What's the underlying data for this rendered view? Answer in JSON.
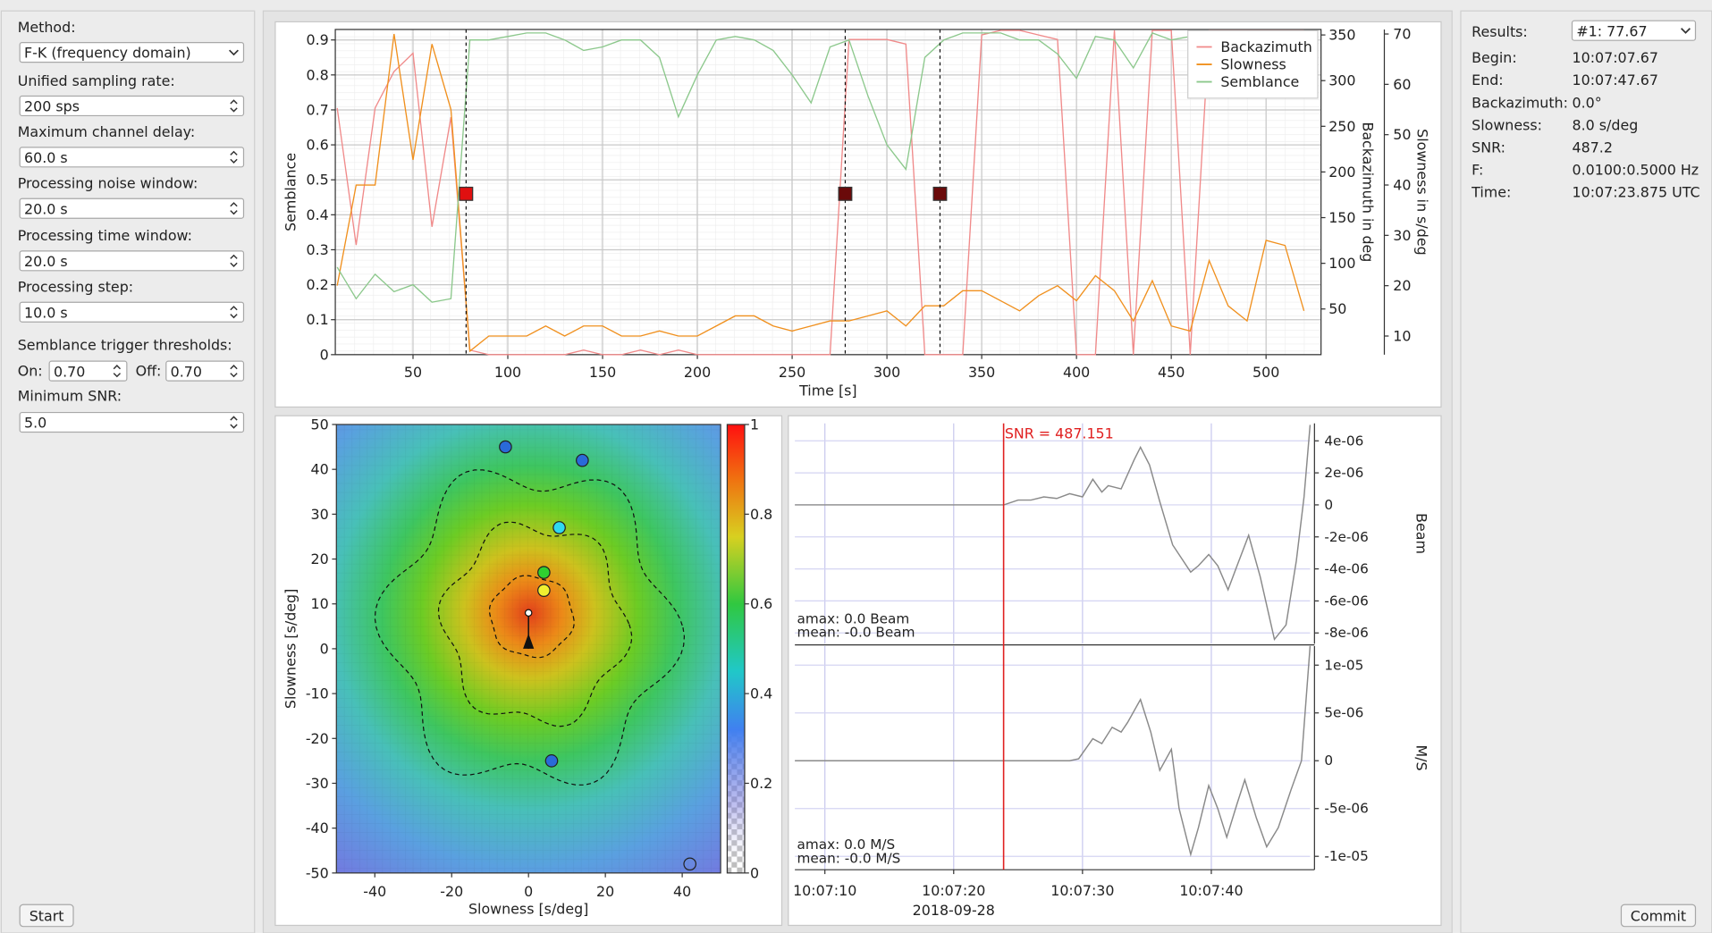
{
  "settings": {
    "method_label": "Method:",
    "method": "F-K (frequency domain)",
    "fields": [
      {
        "label": "Unified sampling rate:",
        "value": "200 sps"
      },
      {
        "label": "Maximum channel delay:",
        "value": "60.0 s"
      },
      {
        "label": "Processing noise window:",
        "value": "20.0 s"
      },
      {
        "label": "Processing time window:",
        "value": "20.0 s"
      },
      {
        "label": "Processing step:",
        "value": "10.0 s"
      }
    ],
    "thresholds_label": "Semblance trigger thresholds:",
    "on_label": "On:",
    "on": "0.70",
    "off_label": "Off:",
    "off": "0.70",
    "snr_label": "Minimum SNR:",
    "snr": "5.0",
    "start": "Start"
  },
  "results": {
    "label": "Results:",
    "selected": "#1: 77.67",
    "rows": [
      {
        "label": "Begin:",
        "value": "10:07:07.67"
      },
      {
        "label": "End:",
        "value": "10:07:47.67"
      },
      {
        "label": "Backazimuth:",
        "value": "0.0°"
      },
      {
        "label": "Slowness:",
        "value": "8.0 s/deg"
      },
      {
        "label": "SNR:",
        "value": "487.2"
      },
      {
        "label": "F:",
        "value": "0.0100:0.5000 Hz"
      },
      {
        "label": "Time:",
        "value": "10:07:23.875 UTC"
      }
    ],
    "commit": "Commit"
  },
  "chart_data": [
    {
      "type": "line",
      "xlabel": "Time [s]",
      "ylabel": "Semblance",
      "y2label": "Backazimuth in deg",
      "y3label": "Slowness in s/deg",
      "xlim": [
        9,
        529
      ],
      "ylim": [
        0,
        0.93
      ],
      "y2lim": [
        0,
        356
      ],
      "y3lim": [
        6.3,
        70.9
      ],
      "xticks": [
        50,
        100,
        150,
        200,
        250,
        300,
        350,
        400,
        450,
        500
      ],
      "yticks": [
        0,
        0.1,
        0.2,
        0.3,
        0.4,
        0.5,
        0.6,
        0.7,
        0.8,
        0.9
      ],
      "y2ticks": [
        50,
        100,
        150,
        200,
        250,
        300,
        350
      ],
      "y3ticks": [
        10,
        20,
        30,
        40,
        50,
        60,
        70
      ],
      "grid": true,
      "legend": "upper right",
      "x": [
        10,
        20,
        30,
        40,
        50,
        60,
        70,
        80,
        90,
        100,
        110,
        120,
        130,
        140,
        150,
        160,
        170,
        180,
        190,
        200,
        210,
        220,
        230,
        240,
        250,
        260,
        270,
        280,
        290,
        300,
        310,
        320,
        330,
        340,
        350,
        360,
        370,
        380,
        390,
        400,
        410,
        420,
        430,
        440,
        450,
        460,
        470,
        480,
        490,
        500,
        510,
        520
      ],
      "series": [
        {
          "name": "Backazimuth",
          "color": "#f08a8a",
          "axis": "y2",
          "values": [
            270,
            120,
            270,
            310,
            330,
            140,
            260,
            5,
            0,
            0,
            0,
            0,
            0,
            5,
            0,
            0,
            5,
            0,
            5,
            0,
            0,
            0,
            0,
            0,
            0,
            0,
            0,
            345,
            345,
            345,
            340,
            0,
            0,
            0,
            350,
            355,
            355,
            350,
            345,
            0,
            0,
            355,
            0,
            355,
            355,
            0,
            355,
            355,
            355,
            355,
            355,
            355
          ]
        },
        {
          "name": "Slowness",
          "color": "#f0901e",
          "axis": "y3",
          "values": [
            20,
            40,
            40,
            70,
            45,
            68,
            55,
            7,
            10,
            10,
            10,
            12,
            10,
            12,
            12,
            10,
            10,
            11,
            10,
            10,
            12,
            14,
            14,
            12,
            11,
            12,
            13,
            13,
            14,
            15,
            12,
            16,
            16,
            19,
            19,
            17,
            15,
            18,
            20,
            17,
            22,
            19,
            13,
            21,
            12,
            11,
            25,
            16,
            13,
            29,
            28,
            15
          ]
        },
        {
          "name": "Semblance",
          "color": "#8cc88c",
          "axis": "y",
          "values": [
            0.25,
            0.16,
            0.23,
            0.18,
            0.2,
            0.15,
            0.16,
            0.9,
            0.9,
            0.91,
            0.92,
            0.92,
            0.9,
            0.87,
            0.88,
            0.9,
            0.9,
            0.85,
            0.68,
            0.8,
            0.9,
            0.91,
            0.9,
            0.87,
            0.8,
            0.72,
            0.88,
            0.9,
            0.74,
            0.6,
            0.53,
            0.85,
            0.9,
            0.92,
            0.92,
            0.92,
            0.9,
            0.9,
            0.86,
            0.79,
            0.91,
            0.9,
            0.82,
            0.92,
            0.9,
            0.91,
            0.9,
            0.91,
            0.9,
            0.91,
            0.9,
            0.9
          ]
        }
      ],
      "triggers": {
        "x": [
          78,
          278,
          328
        ],
        "values": [
          0.46,
          0.46,
          0.46
        ],
        "colors": [
          "#e01010",
          "#6a0a0a",
          "#6a0a0a"
        ]
      }
    },
    {
      "type": "heatmap",
      "xlabel": "Slowness [s/deg]",
      "ylabel": "Slowness [s/deg]",
      "xlim": [
        -50,
        50
      ],
      "ylim": [
        -50,
        50
      ],
      "xticks": [
        -40,
        -20,
        0,
        20,
        40
      ],
      "yticks": [
        -50,
        -40,
        -30,
        -20,
        -10,
        0,
        10,
        20,
        30,
        40,
        50
      ],
      "colorbar_lim": [
        0,
        1
      ],
      "colorbar_ticks": [
        0,
        0.2,
        0.4,
        0.6,
        0.8,
        1
      ],
      "stations": {
        "x": [
          -6,
          14,
          8,
          4,
          4,
          6,
          42
        ],
        "y": [
          45,
          42,
          27,
          17,
          13,
          -25,
          -48
        ],
        "colors": [
          "#2a6ad8",
          "#2a6ad8",
          "#30d8f0",
          "#30d030",
          "#f0f030",
          "#2a6ad8",
          "none"
        ]
      },
      "peak": {
        "x": 0,
        "y": 8
      }
    },
    {
      "type": "line",
      "xlim": [
        7.67,
        47.67
      ],
      "xticks": [
        {
          "value": 10,
          "label": "10:07:10"
        },
        {
          "value": 20,
          "label": "10:07:20"
        },
        {
          "value": 30,
          "label": "10:07:30"
        },
        {
          "value": 40,
          "label": "10:07:40"
        }
      ],
      "date_label": "2018-09-28",
      "snr": {
        "time": 23.875,
        "label": "SNR = 487.151"
      },
      "color": "#8a8a8a",
      "panels": [
        {
          "name": "Beam",
          "ylim": [
            -8.68e-06,
            5.09e-06
          ],
          "yticks": [
            {
              "value": 4e-06,
              "label": "4e-06"
            },
            {
              "value": 2e-06,
              "label": "2e-06"
            },
            0,
            {
              "value": -2e-06,
              "label": "-2e-06"
            },
            {
              "value": -4e-06,
              "label": "-4e-06"
            },
            {
              "value": -6e-06,
              "label": "-6e-06"
            },
            {
              "value": -8e-06,
              "label": "-8e-06"
            }
          ],
          "annotations": [
            "amax: 0.0 Beam",
            "mean: -0.0 Beam"
          ],
          "x": [
            7.67,
            10,
            15,
            20,
            23.9,
            25,
            26,
            27,
            28,
            29,
            30,
            30.8,
            31.5,
            32,
            33,
            34,
            34.5,
            35.2,
            36,
            37,
            38.4,
            39,
            39.8,
            40.5,
            41.3,
            42,
            42.9,
            43.8,
            44.9,
            45.8,
            46.6,
            47.2,
            47.67
          ],
          "values": [
            0,
            0,
            0,
            0,
            0,
            3e-07,
            3e-07,
            5e-07,
            4e-07,
            7e-07,
            5e-07,
            1.6e-06,
            8e-07,
            1.2e-06,
            1e-06,
            2.8e-06,
            3.6e-06,
            2.5e-06,
            2e-07,
            -2.5e-06,
            -4.2e-06,
            -3.8e-06,
            -3.1e-06,
            -3.8e-06,
            -5.3e-06,
            -3.8e-06,
            -1.9e-06,
            -4.5e-06,
            -8.4e-06,
            -7.5e-06,
            -3.5e-06,
            5e-07,
            5e-06
          ]
        },
        {
          "name": "M/S",
          "ylim": [
            -1.14e-05,
            1.2e-05
          ],
          "yticks": [
            {
              "value": 1e-05,
              "label": "1e-05"
            },
            {
              "value": 5e-06,
              "label": "5e-06"
            },
            0,
            {
              "value": -5e-06,
              "label": "-5e-06"
            },
            {
              "value": -1e-05,
              "label": "-1e-05"
            }
          ],
          "annotations": [
            "amax: 0.0 M/S",
            "mean: -0.0 M/S"
          ],
          "x": [
            7.67,
            10,
            15,
            20,
            25,
            29,
            29.7,
            30.8,
            31.5,
            32.3,
            33,
            33.5,
            34.5,
            35.3,
            36,
            36.9,
            37.5,
            38.4,
            39,
            39.8,
            40.5,
            41.2,
            42,
            42.6,
            43.5,
            44.3,
            45.2,
            46.2,
            47,
            47.67
          ],
          "values": [
            0,
            0,
            0,
            0,
            0,
            0,
            2e-07,
            2.3e-06,
            1.8e-06,
            3.5e-06,
            3e-06,
            4e-06,
            6.4e-06,
            3e-06,
            -1e-06,
            1.2e-06,
            -5e-06,
            -9.8e-06,
            -7e-06,
            -2.6e-06,
            -5e-06,
            -8e-06,
            -4.5e-06,
            -2e-06,
            -6e-06,
            -9e-06,
            -7e-06,
            -3e-06,
            0,
            1.2e-05
          ]
        }
      ]
    }
  ]
}
